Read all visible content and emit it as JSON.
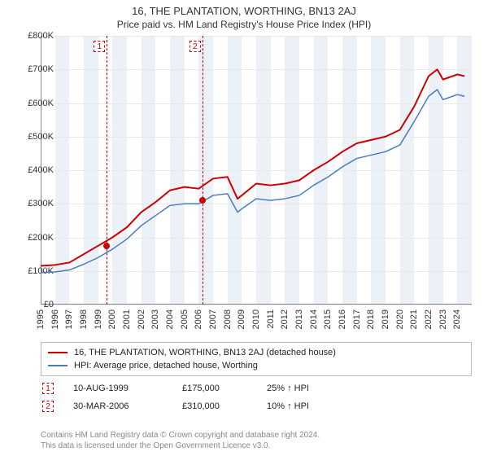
{
  "title": "16, THE PLANTATION, WORTHING, BN13 2AJ",
  "subtitle": "Price paid vs. HM Land Registry's House Price Index (HPI)",
  "chart": {
    "type": "line",
    "background_color": "#ffffff",
    "grid_color": "#e8e8e8",
    "axis_color": "#888888",
    "band_color": "rgba(200,215,235,0.35)",
    "xlim": [
      1995,
      2025
    ],
    "ylim": [
      0,
      800000
    ],
    "ytick_step": 100000,
    "ytick_prefix": "£",
    "ytick_labels": [
      "£0",
      "£100K",
      "£200K",
      "£300K",
      "£400K",
      "£500K",
      "£600K",
      "£700K",
      "£800K"
    ],
    "xtick_step": 1,
    "xtick_labels": [
      "1995",
      "1996",
      "1997",
      "1998",
      "1999",
      "2000",
      "2001",
      "2002",
      "2003",
      "2004",
      "2005",
      "2006",
      "2007",
      "2008",
      "2009",
      "2010",
      "2011",
      "2012",
      "2013",
      "2014",
      "2015",
      "2016",
      "2017",
      "2018",
      "2019",
      "2020",
      "2021",
      "2022",
      "2023",
      "2024"
    ],
    "series": [
      {
        "name": "property",
        "label": "16, THE PLANTATION, WORTHING, BN13 2AJ (detached house)",
        "color": "#cc0000",
        "line_width": 2,
        "x": [
          1995,
          1996,
          1997,
          1998,
          1999,
          2000,
          2001,
          2002,
          2003,
          2004,
          2005,
          2006,
          2007,
          2008,
          2008.7,
          2009,
          2010,
          2011,
          2012,
          2013,
          2014,
          2015,
          2016,
          2017,
          2018,
          2019,
          2020,
          2021,
          2022,
          2022.6,
          2023,
          2024,
          2024.5
        ],
        "y": [
          115000,
          118000,
          125000,
          150000,
          175000,
          200000,
          230000,
          275000,
          305000,
          340000,
          350000,
          345000,
          375000,
          380000,
          315000,
          325000,
          360000,
          355000,
          360000,
          370000,
          400000,
          425000,
          455000,
          480000,
          490000,
          500000,
          520000,
          590000,
          680000,
          700000,
          670000,
          685000,
          680000
        ]
      },
      {
        "name": "hpi",
        "label": "HPI: Average price, detached house, Worthing",
        "color": "#4a7bbf",
        "line_width": 1.5,
        "x": [
          1995,
          1996,
          1997,
          1998,
          1999,
          2000,
          2001,
          2002,
          2003,
          2004,
          2005,
          2006,
          2007,
          2008,
          2008.7,
          2009,
          2010,
          2011,
          2012,
          2013,
          2014,
          2015,
          2016,
          2017,
          2018,
          2019,
          2020,
          2021,
          2022,
          2022.6,
          2023,
          2024,
          2024.5
        ],
        "y": [
          95000,
          97000,
          103000,
          120000,
          140000,
          165000,
          195000,
          235000,
          265000,
          295000,
          300000,
          300000,
          325000,
          330000,
          275000,
          285000,
          315000,
          310000,
          315000,
          325000,
          355000,
          380000,
          410000,
          435000,
          445000,
          455000,
          475000,
          545000,
          620000,
          640000,
          610000,
          625000,
          620000
        ]
      }
    ],
    "markers": [
      {
        "n": "1",
        "x": 1999.6,
        "y": 175000,
        "box_x": 1999.1
      },
      {
        "n": "2",
        "x": 2006.25,
        "y": 310000,
        "box_x": 2005.75
      }
    ]
  },
  "legend": {
    "items": [
      {
        "color": "#cc0000",
        "label": "16, THE PLANTATION, WORTHING, BN13 2AJ (detached house)"
      },
      {
        "color": "#4a7bbf",
        "label": "HPI: Average price, detached house, Worthing"
      }
    ]
  },
  "sales": [
    {
      "n": "1",
      "date": "10-AUG-1999",
      "price": "£175,000",
      "pct": "25% ↑ HPI"
    },
    {
      "n": "2",
      "date": "30-MAR-2006",
      "price": "£310,000",
      "pct": "10% ↑ HPI"
    }
  ],
  "footer_lines": [
    "Contains HM Land Registry data © Crown copyright and database right 2024.",
    "This data is licensed under the Open Government Licence v3.0."
  ]
}
